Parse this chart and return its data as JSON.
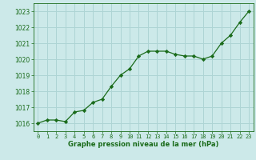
{
  "x": [
    0,
    1,
    2,
    3,
    4,
    5,
    6,
    7,
    8,
    9,
    10,
    11,
    12,
    13,
    14,
    15,
    16,
    17,
    18,
    19,
    20,
    21,
    22,
    23
  ],
  "y": [
    1016.0,
    1016.2,
    1016.2,
    1016.1,
    1016.7,
    1016.8,
    1017.3,
    1017.5,
    1018.3,
    1019.0,
    1019.4,
    1020.2,
    1020.5,
    1020.5,
    1020.5,
    1020.3,
    1020.2,
    1020.2,
    1020.0,
    1020.2,
    1021.0,
    1021.5,
    1022.3,
    1023.0
  ],
  "line_color": "#1a6b1a",
  "marker": "D",
  "marker_size": 2.2,
  "bg_color": "#cce9e9",
  "grid_color": "#aed4d4",
  "xlabel": "Graphe pression niveau de la mer (hPa)",
  "xlabel_color": "#1a6b1a",
  "tick_color": "#1a6b1a",
  "ylim": [
    1015.5,
    1023.5
  ],
  "xlim": [
    -0.5,
    23.5
  ],
  "yticks": [
    1016,
    1017,
    1018,
    1019,
    1020,
    1021,
    1022,
    1023
  ],
  "xticks": [
    0,
    1,
    2,
    3,
    4,
    5,
    6,
    7,
    8,
    9,
    10,
    11,
    12,
    13,
    14,
    15,
    16,
    17,
    18,
    19,
    20,
    21,
    22,
    23
  ],
  "xtick_labels": [
    "0",
    "1",
    "2",
    "3",
    "4",
    "5",
    "6",
    "7",
    "8",
    "9",
    "10",
    "11",
    "12",
    "13",
    "14",
    "15",
    "16",
    "17",
    "18",
    "19",
    "20",
    "21",
    "22",
    "23"
  ]
}
